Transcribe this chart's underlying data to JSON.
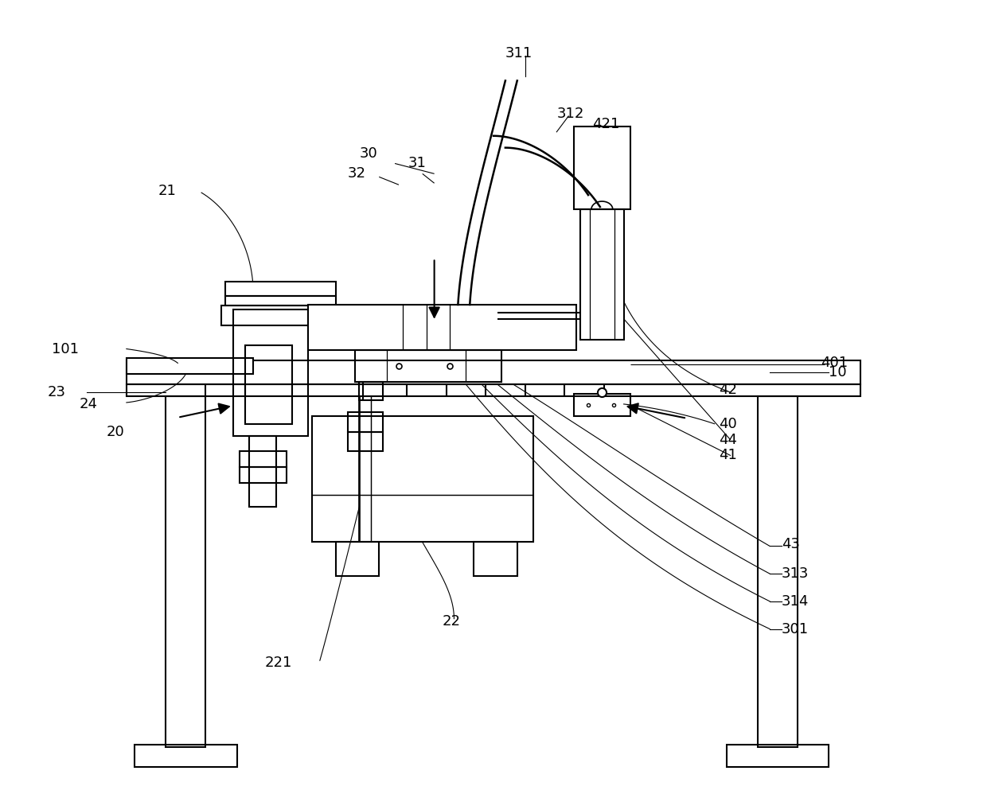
{
  "bg_color": "#ffffff",
  "line_color": "#000000",
  "line_width": 1.5,
  "fig_width": 12.4,
  "fig_height": 9.98
}
